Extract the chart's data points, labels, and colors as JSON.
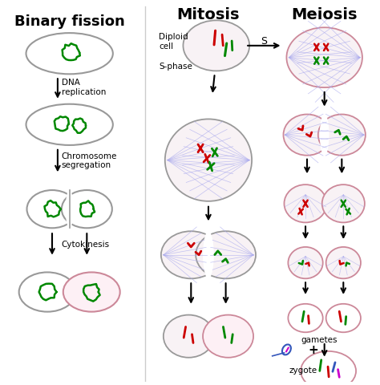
{
  "title_binary": "Binary fission",
  "title_mitosis": "Mitosis",
  "title_meiosis": "Meiosis",
  "label_diploid": "Diploid\ncell",
  "label_sphase": "S-phase",
  "label_dna_rep": "DNA\nreplication",
  "label_chrom_seg": "Chromosome\nsegregation",
  "label_cytokinesis": "Cytokinesis",
  "label_s": "S",
  "label_gametes": "gametes",
  "label_zygote": "zygote",
  "bg_color": "#ffffff",
  "green": "#008800",
  "red": "#cc0000",
  "blue": "#3355bb",
  "magenta": "#cc00cc",
  "spindle_color": "#aaaaee",
  "gray_edge": "#999999",
  "pink_edge": "#cc8899",
  "cell_fill": "#f8f2f5"
}
